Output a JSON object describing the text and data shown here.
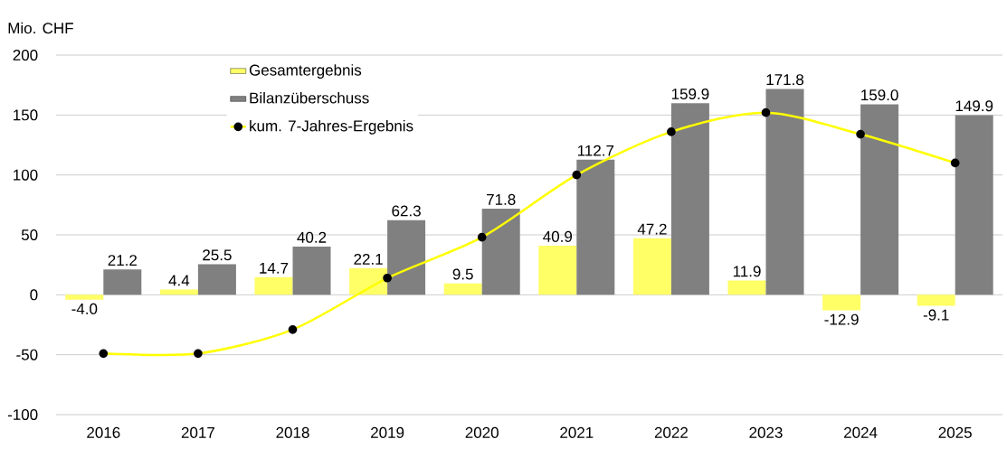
{
  "chart_data": {
    "type": "bar",
    "ylabel": "Mio. CHF",
    "categories": [
      "2016",
      "2017",
      "2018",
      "2019",
      "2020",
      "2021",
      "2022",
      "2023",
      "2024",
      "2025"
    ],
    "series": [
      {
        "name": "Gesamtergebnis",
        "color": "#ffff66",
        "values": [
          -4.0,
          4.4,
          14.7,
          22.1,
          9.5,
          40.9,
          47.2,
          11.9,
          -12.9,
          -9.1
        ],
        "value_labels": [
          "-4.0",
          "4.4",
          "14.7",
          "22.1",
          "9.5",
          "40.9",
          "47.2",
          "11.9",
          "-12.9",
          "-9.1"
        ]
      },
      {
        "name": "Bilanzüberschuss",
        "color": "#808080",
        "values": [
          21.2,
          25.5,
          40.2,
          62.3,
          71.8,
          112.7,
          159.9,
          171.8,
          159.0,
          149.9
        ],
        "value_labels": [
          "21.2",
          "25.5",
          "40.2",
          "62.3",
          "71.8",
          "112.7",
          "159.9",
          "171.8",
          "159.0",
          "149.9"
        ]
      },
      {
        "name": "kum. 7-Jahres-Ergebnis",
        "type": "line",
        "color": "#ffff00",
        "values": [
          -49,
          -49,
          -29,
          14,
          48,
          100,
          136,
          152,
          134,
          110
        ]
      }
    ],
    "ylim": [
      -100,
      200
    ],
    "yticks": [
      -100,
      -50,
      0,
      50,
      100,
      150,
      200
    ],
    "grid": "y",
    "legend": "top left",
    "marker": "circle"
  }
}
